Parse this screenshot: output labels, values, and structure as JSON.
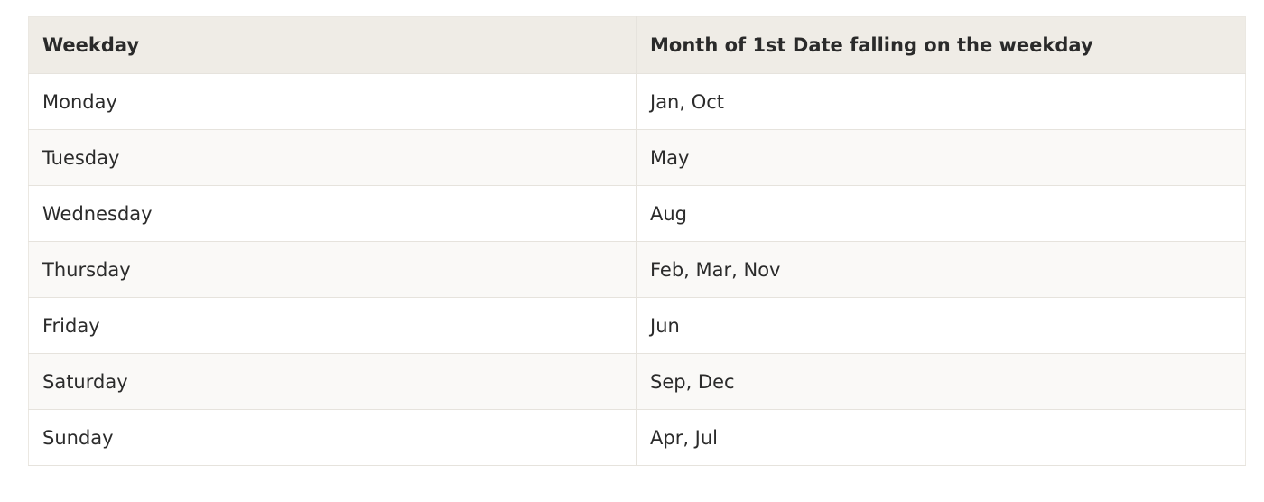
{
  "table": {
    "headers": [
      "Weekday",
      "Month of 1st Date falling on the weekday"
    ],
    "rows": [
      [
        "Monday",
        "Jan, Oct"
      ],
      [
        "Tuesday",
        "May"
      ],
      [
        "Wednesday",
        "Aug"
      ],
      [
        "Thursday",
        "Feb, Mar, Nov"
      ],
      [
        "Friday",
        "Jun"
      ],
      [
        "Saturday",
        "Sep, Dec"
      ],
      [
        "Sunday",
        "Apr, Jul"
      ]
    ]
  }
}
